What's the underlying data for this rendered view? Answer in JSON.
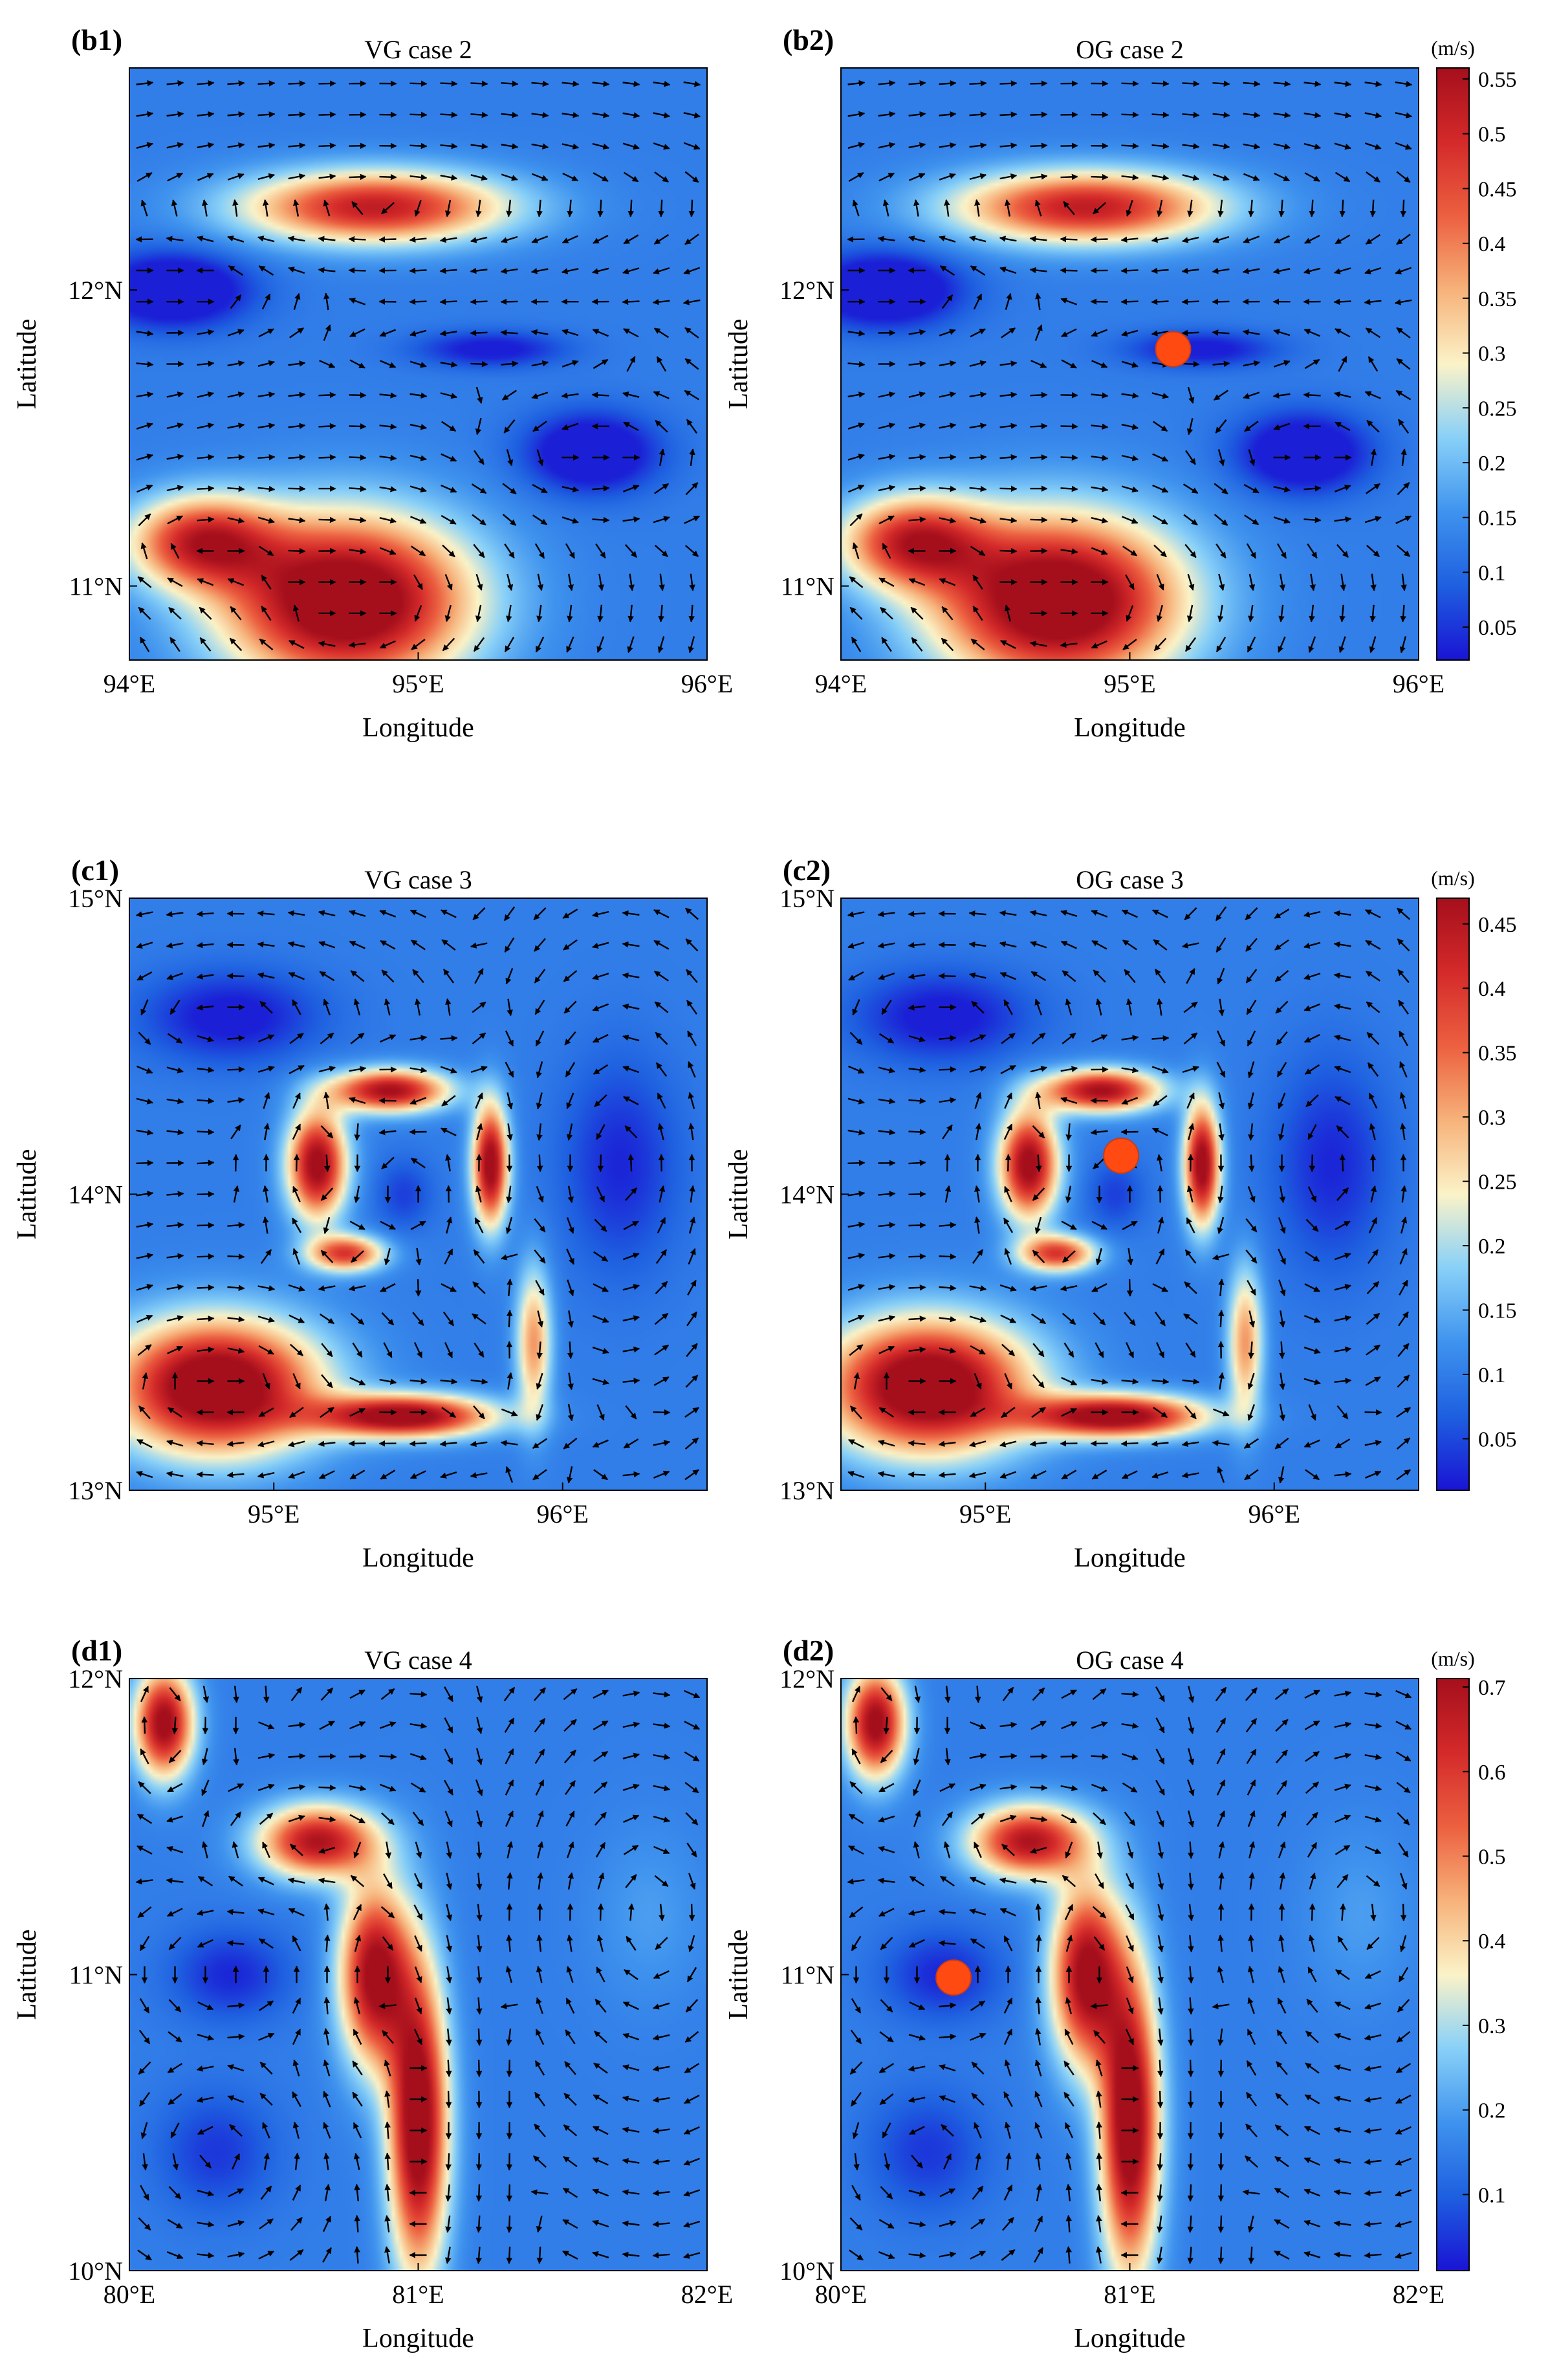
{
  "chart_data": [
    {
      "type": "heatmap",
      "tag": "(b1)",
      "title": "VG case 2",
      "xlabel": "Longitude",
      "ylabel": "Latitude",
      "xlim": [
        94.0,
        96.0
      ],
      "ylim": [
        10.75,
        12.75
      ],
      "xticks": [
        94,
        95,
        96
      ],
      "xtick_labels": [
        "94°E",
        "95°E",
        "96°E"
      ],
      "yticks": [
        11,
        12
      ],
      "ytick_labels": [
        "11°N",
        "12°N"
      ],
      "field_max": 0.56,
      "features": [
        {
          "x": 94.85,
          "y": 12.28,
          "sx": 0.45,
          "sy": 0.12,
          "value": 0.41
        },
        {
          "x": 94.75,
          "y": 10.95,
          "sx": 0.42,
          "sy": 0.28,
          "value": 0.55
        },
        {
          "x": 94.25,
          "y": 11.15,
          "sx": 0.25,
          "sy": 0.15,
          "value": 0.38
        },
        {
          "x": 94.15,
          "y": 12.0,
          "sx": 0.25,
          "sy": 0.12,
          "value": -0.2
        },
        {
          "x": 95.6,
          "y": 11.45,
          "sx": 0.22,
          "sy": 0.13,
          "value": -0.18
        },
        {
          "x": 95.25,
          "y": 11.8,
          "sx": 0.25,
          "sy": 0.06,
          "value": -0.12
        }
      ],
      "observation": null,
      "colorbar": null
    },
    {
      "type": "heatmap",
      "tag": "(b2)",
      "title": "OG case 2",
      "xlabel": "Longitude",
      "ylabel": "Latitude",
      "xlim": [
        94.0,
        96.0
      ],
      "ylim": [
        10.75,
        12.75
      ],
      "xticks": [
        94,
        95,
        96
      ],
      "xtick_labels": [
        "94°E",
        "95°E",
        "96°E"
      ],
      "yticks": [
        11,
        12
      ],
      "ytick_labels": [
        "11°N",
        "12°N"
      ],
      "field_max": 0.56,
      "features": [
        {
          "x": 94.85,
          "y": 12.28,
          "sx": 0.45,
          "sy": 0.12,
          "value": 0.41
        },
        {
          "x": 94.75,
          "y": 10.95,
          "sx": 0.42,
          "sy": 0.28,
          "value": 0.55
        },
        {
          "x": 94.25,
          "y": 11.15,
          "sx": 0.25,
          "sy": 0.15,
          "value": 0.38
        },
        {
          "x": 94.15,
          "y": 12.0,
          "sx": 0.25,
          "sy": 0.12,
          "value": -0.2
        },
        {
          "x": 95.6,
          "y": 11.45,
          "sx": 0.22,
          "sy": 0.13,
          "value": -0.18
        },
        {
          "x": 95.25,
          "y": 11.8,
          "sx": 0.25,
          "sy": 0.06,
          "value": -0.12
        }
      ],
      "observation": {
        "lon": 95.15,
        "lat": 11.8
      },
      "colorbar": {
        "unit": "(m/s)",
        "min": 0.02,
        "max": 0.56,
        "ticks": [
          0.05,
          0.1,
          0.15,
          0.2,
          0.25,
          0.3,
          0.35,
          0.4,
          0.45,
          0.5,
          0.55
        ],
        "tick_labels": [
          "0.05",
          "0.1",
          "0.15",
          "0.2",
          "0.25",
          "0.3",
          "0.35",
          "0.4",
          "0.45",
          "0.5",
          "0.55"
        ]
      }
    },
    {
      "type": "heatmap",
      "tag": "(c1)",
      "title": "VG case 3",
      "xlabel": "Longitude",
      "ylabel": "Latitude",
      "xlim": [
        94.5,
        96.5
      ],
      "ylim": [
        13.0,
        15.0
      ],
      "xticks": [
        95,
        96
      ],
      "xtick_labels": [
        "95°E",
        "96°E"
      ],
      "yticks": [
        13,
        14,
        15
      ],
      "ytick_labels": [
        "13°N",
        "14°N",
        "15°N"
      ],
      "field_max": 0.47,
      "features": [
        {
          "x": 94.8,
          "y": 13.35,
          "sx": 0.35,
          "sy": 0.22,
          "value": 0.46
        },
        {
          "x": 95.45,
          "y": 13.25,
          "sx": 0.3,
          "sy": 0.07,
          "value": 0.42
        },
        {
          "x": 95.15,
          "y": 14.1,
          "sx": 0.1,
          "sy": 0.18,
          "value": 0.4
        },
        {
          "x": 95.4,
          "y": 14.35,
          "sx": 0.2,
          "sy": 0.07,
          "value": 0.38
        },
        {
          "x": 95.25,
          "y": 13.8,
          "sx": 0.13,
          "sy": 0.06,
          "value": 0.3
        },
        {
          "x": 95.75,
          "y": 14.1,
          "sx": 0.06,
          "sy": 0.2,
          "value": 0.41
        },
        {
          "x": 95.9,
          "y": 13.5,
          "sx": 0.06,
          "sy": 0.25,
          "value": 0.22
        },
        {
          "x": 94.85,
          "y": 14.6,
          "sx": 0.3,
          "sy": 0.15,
          "value": -0.1
        },
        {
          "x": 96.2,
          "y": 14.1,
          "sx": 0.2,
          "sy": 0.35,
          "value": -0.08
        },
        {
          "x": 95.45,
          "y": 14.0,
          "sx": 0.1,
          "sy": 0.12,
          "value": -0.06
        }
      ],
      "observation": null,
      "colorbar": null
    },
    {
      "type": "heatmap",
      "tag": "(c2)",
      "title": "OG case 3",
      "xlabel": "Longitude",
      "ylabel": "Latitude",
      "xlim": [
        94.5,
        96.5
      ],
      "ylim": [
        13.0,
        15.0
      ],
      "xticks": [
        95,
        96
      ],
      "xtick_labels": [
        "95°E",
        "96°E"
      ],
      "yticks": [
        13,
        14,
        15
      ],
      "ytick_labels": [
        "13°N",
        "14°N",
        "15°N"
      ],
      "field_max": 0.47,
      "features": [
        {
          "x": 94.8,
          "y": 13.35,
          "sx": 0.35,
          "sy": 0.22,
          "value": 0.46
        },
        {
          "x": 95.45,
          "y": 13.25,
          "sx": 0.3,
          "sy": 0.07,
          "value": 0.42
        },
        {
          "x": 95.15,
          "y": 14.1,
          "sx": 0.1,
          "sy": 0.18,
          "value": 0.4
        },
        {
          "x": 95.4,
          "y": 14.35,
          "sx": 0.2,
          "sy": 0.07,
          "value": 0.38
        },
        {
          "x": 95.25,
          "y": 13.8,
          "sx": 0.13,
          "sy": 0.06,
          "value": 0.3
        },
        {
          "x": 95.75,
          "y": 14.1,
          "sx": 0.06,
          "sy": 0.2,
          "value": 0.41
        },
        {
          "x": 95.9,
          "y": 13.5,
          "sx": 0.06,
          "sy": 0.25,
          "value": 0.22
        },
        {
          "x": 94.85,
          "y": 14.6,
          "sx": 0.3,
          "sy": 0.15,
          "value": -0.1
        },
        {
          "x": 96.2,
          "y": 14.1,
          "sx": 0.2,
          "sy": 0.35,
          "value": -0.08
        },
        {
          "x": 95.45,
          "y": 14.0,
          "sx": 0.1,
          "sy": 0.12,
          "value": -0.06
        }
      ],
      "observation": {
        "lon": 95.47,
        "lat": 14.13
      },
      "colorbar": {
        "unit": "(m/s)",
        "min": 0.01,
        "max": 0.47,
        "ticks": [
          0.05,
          0.1,
          0.15,
          0.2,
          0.25,
          0.3,
          0.35,
          0.4,
          0.45
        ],
        "tick_labels": [
          "0.05",
          "0.1",
          "0.15",
          "0.2",
          "0.25",
          "0.3",
          "0.35",
          "0.4",
          "0.45"
        ]
      }
    },
    {
      "type": "heatmap",
      "tag": "(d1)",
      "title": "VG case 4",
      "xlabel": "Longitude",
      "ylabel": "Latitude",
      "xlim": [
        80.0,
        82.0
      ],
      "ylim": [
        10.0,
        12.0
      ],
      "xticks": [
        80,
        81,
        82
      ],
      "xtick_labels": [
        "80°E",
        "81°E",
        "82°E"
      ],
      "yticks": [
        10,
        11,
        12
      ],
      "ytick_labels": [
        "10°N",
        "11°N",
        "12°N"
      ],
      "field_max": 0.71,
      "features": [
        {
          "x": 81.0,
          "y": 10.5,
          "sx": 0.1,
          "sy": 0.5,
          "value": 0.66
        },
        {
          "x": 80.85,
          "y": 11.0,
          "sx": 0.12,
          "sy": 0.3,
          "value": 0.6
        },
        {
          "x": 80.65,
          "y": 11.45,
          "sx": 0.2,
          "sy": 0.12,
          "value": 0.55
        },
        {
          "x": 80.12,
          "y": 11.85,
          "sx": 0.1,
          "sy": 0.18,
          "value": 0.6
        },
        {
          "x": 80.35,
          "y": 11.0,
          "sx": 0.2,
          "sy": 0.15,
          "value": -0.12
        },
        {
          "x": 80.3,
          "y": 10.4,
          "sx": 0.2,
          "sy": 0.2,
          "value": -0.1
        },
        {
          "x": 81.8,
          "y": 11.2,
          "sx": 0.2,
          "sy": 0.3,
          "value": 0.05
        }
      ],
      "observation": null,
      "colorbar": null
    },
    {
      "type": "heatmap",
      "tag": "(d2)",
      "title": "OG case 4",
      "xlabel": "Longitude",
      "ylabel": "Latitude",
      "xlim": [
        80.0,
        82.0
      ],
      "ylim": [
        10.0,
        12.0
      ],
      "xticks": [
        80,
        81,
        82
      ],
      "xtick_labels": [
        "80°E",
        "81°E",
        "82°E"
      ],
      "yticks": [
        10,
        11,
        12
      ],
      "ytick_labels": [
        "10°N",
        "11°N",
        "12°N"
      ],
      "field_max": 0.71,
      "features": [
        {
          "x": 81.0,
          "y": 10.5,
          "sx": 0.1,
          "sy": 0.5,
          "value": 0.66
        },
        {
          "x": 80.85,
          "y": 11.0,
          "sx": 0.12,
          "sy": 0.3,
          "value": 0.6
        },
        {
          "x": 80.65,
          "y": 11.45,
          "sx": 0.2,
          "sy": 0.12,
          "value": 0.55
        },
        {
          "x": 80.12,
          "y": 11.85,
          "sx": 0.1,
          "sy": 0.18,
          "value": 0.6
        },
        {
          "x": 80.35,
          "y": 11.0,
          "sx": 0.2,
          "sy": 0.15,
          "value": -0.12
        },
        {
          "x": 80.3,
          "y": 10.4,
          "sx": 0.2,
          "sy": 0.2,
          "value": -0.1
        },
        {
          "x": 81.8,
          "y": 11.2,
          "sx": 0.2,
          "sy": 0.3,
          "value": 0.05
        }
      ],
      "observation": {
        "lon": 80.39,
        "lat": 10.99
      },
      "colorbar": {
        "unit": "(m/s)",
        "min": 0.01,
        "max": 0.71,
        "ticks": [
          0.1,
          0.2,
          0.3,
          0.4,
          0.5,
          0.6,
          0.7
        ],
        "tick_labels": [
          "0.1",
          "0.2",
          "0.3",
          "0.4",
          "0.5",
          "0.6",
          "0.7"
        ]
      }
    }
  ],
  "colors": {
    "colormap": [
      "#1a14d4",
      "#1e5fe0",
      "#3f93ee",
      "#88d0f8",
      "#fbf3c8",
      "#f7b27a",
      "#ec6040",
      "#d42a2a",
      "#a50f1c"
    ],
    "observation_marker": "#ff4a12",
    "arrow": "#000000"
  }
}
